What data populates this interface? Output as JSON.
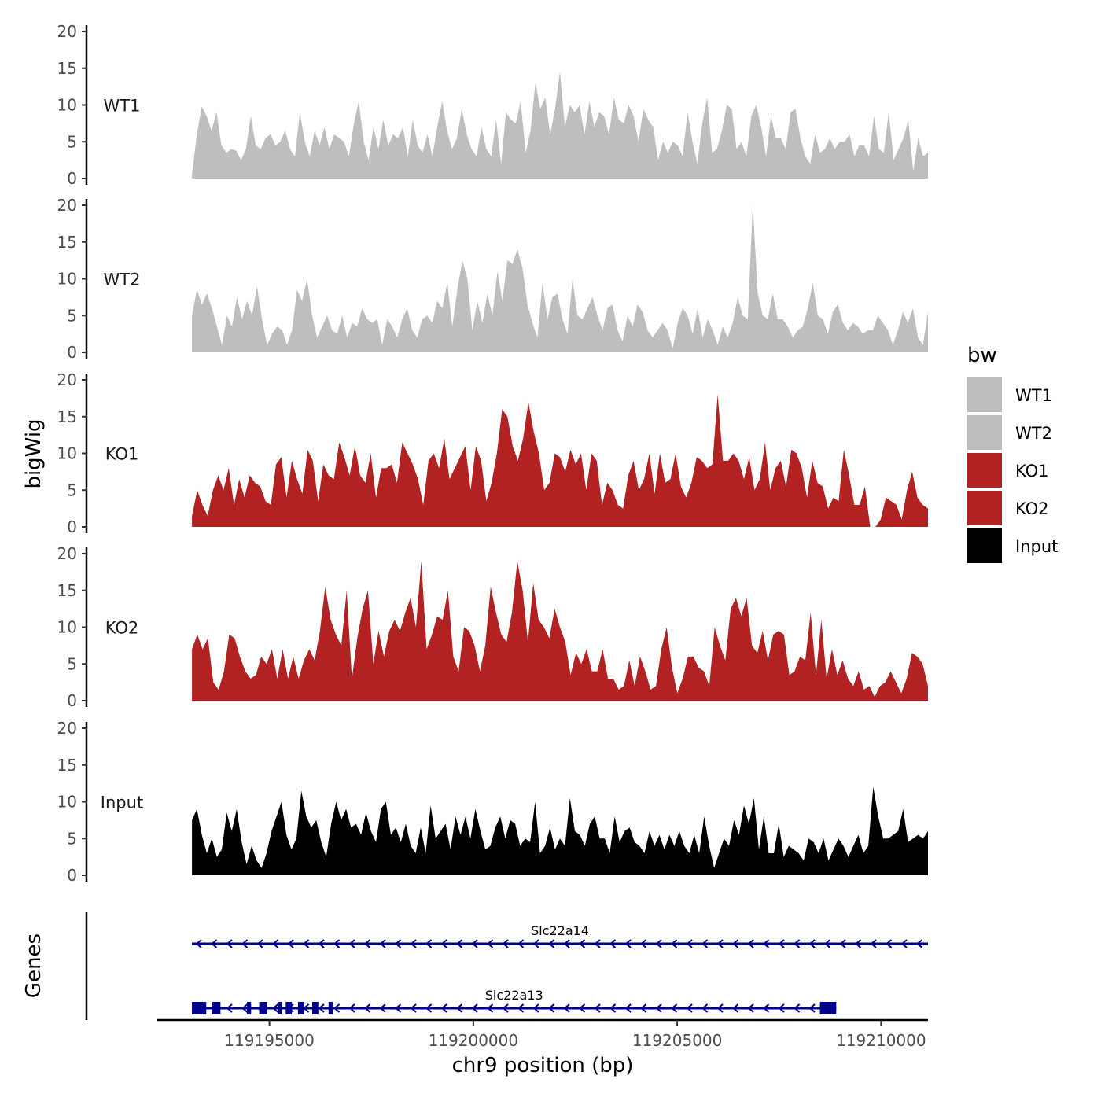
{
  "chart_data": {
    "type": "area",
    "xlabel": "chr9 position (bp)",
    "ylabel": "bigWig",
    "genes_axis_label": "Genes",
    "xlim": [
      119192250,
      119211150
    ],
    "ylim": [
      0,
      20
    ],
    "yticks": [
      0,
      5,
      10,
      15,
      20
    ],
    "xticks": [
      119195000,
      119200000,
      119205000,
      119210000
    ],
    "xtick_labels": [
      "119195000",
      "119200000",
      "119205000",
      "119210000"
    ],
    "x_start": 119193100,
    "x_end": 119211150,
    "legend": {
      "title": "bw",
      "placement": "right",
      "entries": [
        {
          "label": "WT1",
          "color": "#BEBEBE"
        },
        {
          "label": "WT2",
          "color": "#BEBEBE"
        },
        {
          "label": "KO1",
          "color": "#B22222"
        },
        {
          "label": "KO2",
          "color": "#B22222"
        },
        {
          "label": "Input",
          "color": "#000000"
        }
      ]
    },
    "series": [
      {
        "name": "WT1",
        "color": "#BEBEBE",
        "values": [
          0.5,
          6,
          9.8,
          8.5,
          6.5,
          9,
          4.5,
          3.5,
          4,
          3.8,
          2.5,
          4,
          8.5,
          4.5,
          4,
          5.5,
          6,
          4.5,
          5,
          6.5,
          4,
          3,
          9,
          5,
          3,
          6.5,
          4.5,
          7,
          4,
          6,
          5.5,
          5,
          3,
          7.5,
          10.5,
          5,
          2.5,
          7,
          4,
          8,
          4.5,
          6,
          5.5,
          7,
          3,
          8,
          4.5,
          3.5,
          6,
          3,
          7,
          10.5,
          6.5,
          4,
          5.5,
          9.5,
          6,
          4,
          3,
          7,
          4,
          3,
          8,
          2,
          9,
          8,
          7.5,
          10.5,
          3.5,
          6.5,
          13,
          9.5,
          11,
          6,
          9.5,
          14.5,
          7,
          10,
          9,
          10,
          6,
          10.5,
          7,
          9,
          8.5,
          6,
          11,
          8,
          7.5,
          10,
          8.5,
          5,
          9.5,
          8,
          7,
          2.5,
          5,
          3.5,
          5,
          4.5,
          3,
          9,
          5,
          2,
          7.5,
          11,
          3.5,
          4,
          6.5,
          10,
          9.5,
          4,
          5,
          3,
          8.5,
          10,
          7,
          3,
          8.5,
          5.5,
          5.5,
          4,
          9,
          9.5,
          5.5,
          3,
          2,
          6,
          3.5,
          4,
          5.5,
          4,
          5,
          5,
          6,
          3,
          4.5,
          4.5,
          3,
          8.5,
          4,
          3.5,
          9,
          2.5,
          4,
          5.5,
          8,
          1,
          5.5,
          3,
          3.5
        ]
      },
      {
        "name": "WT2",
        "color": "#BEBEBE",
        "values": [
          5,
          8.5,
          6.5,
          8,
          6,
          3.5,
          1,
          5,
          3.5,
          7.5,
          4.5,
          7,
          5,
          9,
          4.5,
          1,
          2.5,
          3.5,
          3,
          1,
          3,
          8.5,
          7,
          10,
          5,
          2,
          3.5,
          5,
          3,
          2.5,
          5,
          2,
          4,
          3.5,
          6,
          4.5,
          4,
          4.5,
          1,
          4.5,
          3.5,
          2,
          4.5,
          6,
          3,
          2,
          4.5,
          5,
          4,
          7,
          6,
          9.5,
          3.5,
          8.5,
          12.5,
          10,
          3,
          7,
          4,
          8,
          5,
          11,
          7,
          12.5,
          12,
          14,
          11.5,
          6.5,
          4,
          2,
          9.5,
          4.5,
          7.5,
          8,
          4.5,
          2.5,
          10,
          5,
          4.5,
          6,
          7.5,
          5,
          3,
          6,
          6.5,
          3,
          1.5,
          5,
          3.5,
          6.5,
          5.5,
          3,
          2,
          3,
          4,
          3,
          0.5,
          4,
          6,
          5,
          2.5,
          6,
          2,
          4.5,
          3,
          1,
          3.5,
          2,
          4,
          7.5,
          5,
          4.5,
          20,
          8,
          5,
          4.5,
          8,
          4.5,
          4.5,
          3.5,
          2,
          3,
          3.5,
          6,
          9.5,
          5,
          4.5,
          2.5,
          5.5,
          6.5,
          4,
          3,
          4,
          3.5,
          2.5,
          3,
          3,
          5,
          4,
          3,
          1,
          3,
          5.5,
          4,
          6,
          2,
          1,
          5.5
        ]
      },
      {
        "name": "KO1",
        "color": "#B22222",
        "values": [
          1.5,
          5,
          3,
          1.5,
          5,
          7,
          5,
          8,
          3,
          6.5,
          4,
          7,
          6,
          5.5,
          3.5,
          3,
          8.5,
          9.5,
          4,
          9,
          6.5,
          4.5,
          10.5,
          9,
          3.5,
          8.5,
          7,
          6.5,
          11.5,
          9.5,
          7,
          11,
          7,
          6,
          10,
          4,
          8,
          8,
          8.5,
          6,
          11.5,
          10,
          8.5,
          6.5,
          3,
          9,
          10,
          8,
          12,
          6.5,
          8,
          9.5,
          11,
          5,
          11,
          9,
          3.5,
          6,
          10,
          16,
          15,
          11,
          9,
          12,
          17,
          13,
          10,
          5,
          6,
          10,
          9.5,
          7.5,
          10.5,
          8.5,
          10,
          5,
          10,
          9,
          3,
          6,
          5,
          3,
          2.5,
          7,
          9,
          5,
          6.5,
          10,
          4.5,
          10,
          6,
          6.5,
          10,
          5.5,
          4,
          6,
          9.5,
          9,
          8,
          8.5,
          18,
          9,
          9,
          10,
          9,
          6.5,
          9.5,
          5,
          6.5,
          11.5,
          5,
          8,
          9,
          5.5,
          10.5,
          10,
          8,
          4,
          9,
          6,
          5.5,
          2.5,
          4,
          3.5,
          10.5,
          7,
          3,
          3,
          5.5,
          0,
          0,
          1,
          4,
          3.5,
          3,
          1,
          5,
          7.5,
          4,
          3,
          2.5
        ]
      },
      {
        "name": "KO2",
        "color": "#B22222",
        "values": [
          7,
          9,
          7,
          8.5,
          2.5,
          1.5,
          4,
          9,
          8.5,
          6,
          4,
          3,
          3.5,
          6,
          5,
          7,
          3,
          7,
          3,
          6,
          3,
          5.5,
          7,
          5.5,
          9.5,
          15.5,
          11,
          9,
          7.5,
          15,
          3,
          8.5,
          12.5,
          15,
          5,
          9.5,
          6,
          9.5,
          11,
          9.5,
          12,
          14,
          10,
          19,
          7,
          9,
          11.5,
          11,
          15,
          6,
          4,
          10,
          9.5,
          7.5,
          4,
          7.5,
          15.5,
          12,
          9,
          8,
          12,
          19,
          15,
          8,
          16,
          11,
          10,
          8.5,
          12.5,
          10,
          8,
          3.5,
          6.5,
          5,
          7,
          4,
          4,
          7,
          3,
          3,
          1.5,
          2,
          5.5,
          2,
          6,
          4,
          1.5,
          2,
          7,
          10,
          4.5,
          1,
          3,
          6,
          6,
          4.5,
          4,
          2,
          10,
          7.5,
          5.5,
          12.5,
          14,
          11.5,
          14,
          7.5,
          6.5,
          9.5,
          5.5,
          9,
          9.5,
          9,
          3.5,
          4,
          6,
          5.5,
          12,
          3.5,
          11,
          3,
          7,
          3.5,
          5.5,
          3,
          2,
          4,
          1.5,
          2,
          0.5,
          2,
          2.5,
          4,
          2.5,
          1,
          3,
          6.5,
          6,
          5,
          2
        ]
      },
      {
        "name": "Input",
        "color": "#000000",
        "values": [
          7.5,
          9,
          5.5,
          3,
          5,
          2.5,
          3.5,
          8.5,
          6,
          9,
          4.5,
          1.5,
          4,
          2,
          1,
          3,
          6,
          8,
          10,
          5.5,
          3.5,
          5,
          11.5,
          8,
          6.5,
          7.5,
          4.5,
          2.5,
          7,
          10,
          7.5,
          9,
          6.5,
          7,
          5.5,
          8.5,
          6,
          4.5,
          9,
          10,
          5.5,
          6.5,
          4.5,
          7,
          4,
          3,
          6.5,
          3,
          9.5,
          5,
          6,
          7,
          3.5,
          8,
          5.5,
          8,
          5,
          9,
          6,
          3.5,
          4,
          6.5,
          8,
          5,
          7.5,
          7,
          4,
          5,
          4.5,
          10,
          3,
          4,
          6.5,
          3.5,
          5,
          4,
          10.5,
          6,
          5.5,
          4,
          7,
          8,
          5,
          5,
          3,
          8,
          4.5,
          6,
          6.5,
          4.5,
          4,
          3,
          6,
          4,
          5.5,
          3.5,
          5.5,
          4,
          6,
          4,
          3,
          5.5,
          3,
          8,
          4,
          1,
          3,
          5,
          4,
          7.5,
          5.5,
          9.5,
          7,
          10.5,
          3.5,
          8,
          3,
          3,
          7,
          2.5,
          4,
          3.5,
          3,
          2,
          5,
          4.5,
          3,
          5,
          2,
          3.5,
          5,
          4,
          2.5,
          4,
          5.5,
          3,
          4,
          12,
          8,
          5,
          5,
          5.5,
          6,
          9,
          4.5,
          5,
          5.5,
          5,
          6
        ]
      }
    ],
    "genes": [
      {
        "name": "Slc22a14",
        "start": 119193100,
        "end": 119211150,
        "strand": "-",
        "exons": []
      },
      {
        "name": "Slc22a13",
        "start": 119193100,
        "end": 119208900,
        "strand": "-",
        "exons": [
          [
            119193100,
            119193450
          ],
          [
            119193600,
            119193800
          ],
          [
            119194450,
            119194550
          ],
          [
            119194750,
            119194950
          ],
          [
            119195200,
            119195300
          ],
          [
            119195400,
            119195550
          ],
          [
            119195700,
            119195850
          ],
          [
            119196050,
            119196200
          ],
          [
            119196450,
            119196550
          ],
          [
            119208500,
            119208900
          ]
        ]
      }
    ]
  }
}
